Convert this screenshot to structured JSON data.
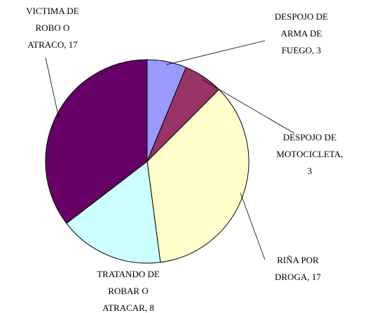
{
  "chart_data": {
    "type": "pie",
    "values": [
      3,
      3,
      17,
      8,
      17
    ],
    "value_labels": [
      "DESPOJO DE ARMA DE FUEGO, 3",
      "DESPOJO DE MOTOCICLETA, 3",
      "RIÑA POR DROGA, 17",
      "TRATANDO DE ROBAR O ATRACAR, 8",
      "VICTIMA DE ROBO O ATRACO, 17"
    ],
    "colors": [
      "#9999ff",
      "#993366",
      "#ffffcc",
      "#ccffff",
      "#660066"
    ]
  }
}
